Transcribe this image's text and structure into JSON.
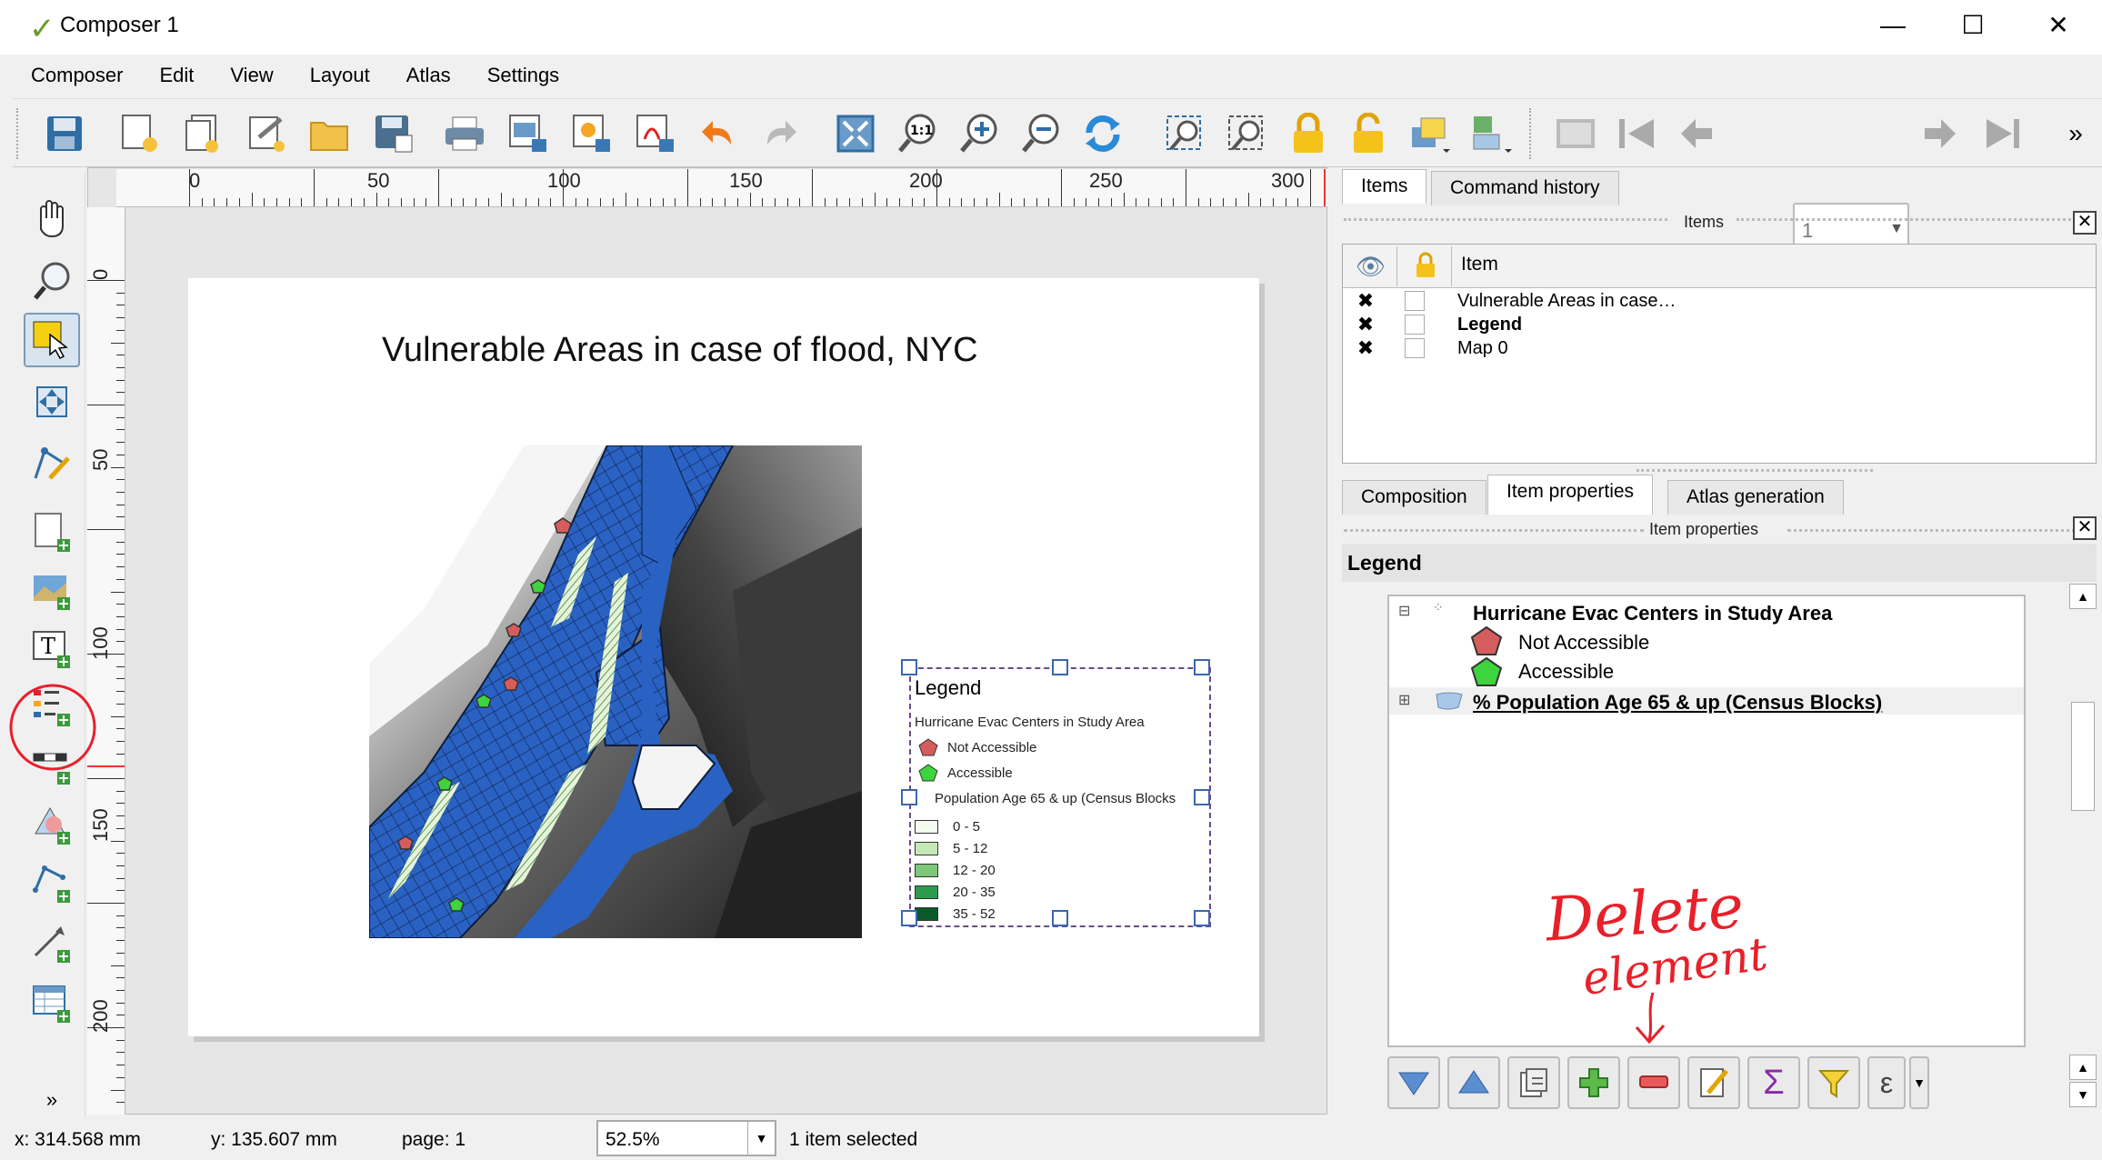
{
  "window": {
    "title": "Composer 1",
    "minimize": "—",
    "maximize": "☐",
    "close": "✕"
  },
  "menu": [
    "Composer",
    "Edit",
    "View",
    "Layout",
    "Atlas",
    "Settings"
  ],
  "toolbar": {
    "icons": [
      "save-icon",
      "new-composer-icon",
      "duplicate-composer-icon",
      "composer-manager-icon",
      "open-template-icon",
      "save-template-icon",
      "print-icon",
      "export-image-icon",
      "export-svg-icon",
      "export-pdf-icon",
      "undo-icon",
      "redo-icon",
      "zoom-full-icon",
      "zoom-actual-icon",
      "zoom-in-icon",
      "zoom-out-icon",
      "refresh-icon",
      "select-all-icon",
      "deselect-icon",
      "lock-icon",
      "unlock-icon",
      "raise-items-icon",
      "align-icon",
      "atlas-preview-icon",
      "first-feature-icon",
      "prev-feature-icon",
      "next-feature-icon",
      "last-feature-icon"
    ],
    "page_number": "1",
    "overflow": "»"
  },
  "ruler": {
    "horizontal_labels": [
      "0",
      "50",
      "100",
      "150",
      "200",
      "250",
      "300"
    ],
    "vertical_labels": [
      "0",
      "50",
      "100",
      "150",
      "200"
    ]
  },
  "composition": {
    "map_title": "Vulnerable Areas in case of flood, NYC",
    "legend": {
      "title": "Legend",
      "group1": "Hurricane Evac Centers in Study Area",
      "not_accessible": "Not Accessible",
      "accessible": "Accessible",
      "group2": "Population Age 65 & up (Census Blocks",
      "classes": [
        "0 - 5",
        "5 - 12",
        "12 - 20",
        "20 - 35",
        "35 - 52"
      ],
      "class_colors": [
        "#f4fbf0",
        "#c5e8b7",
        "#7dc77a",
        "#2d9a4e",
        "#0b5a2a"
      ]
    }
  },
  "right_panel": {
    "top_tabs": [
      "Items",
      "Command history"
    ],
    "items_dock_title": "Items",
    "items_column": "Item",
    "items": [
      {
        "name": "Vulnerable Areas in case…",
        "bold": false
      },
      {
        "name": "Legend",
        "bold": true
      },
      {
        "name": "Map 0",
        "bold": false
      }
    ],
    "bottom_tabs": [
      "Composition",
      "Item properties",
      "Atlas generation"
    ],
    "props_dock_title": "Item properties",
    "legend_header": "Legend",
    "tree": {
      "group1": "Hurricane Evac Centers in Study Area",
      "not_accessible": "Not Accessible",
      "accessible": "Accessible",
      "group2": "% Population Age 65 & up (Census Blocks)"
    },
    "legend_buttons": [
      "move-down-icon",
      "move-up-icon",
      "add-group-icon",
      "add-item-icon",
      "remove-item-icon",
      "edit-item-icon",
      "sum-count-icon",
      "filter-legend-icon",
      "expression-icon"
    ]
  },
  "annotation": {
    "text1": "Delete",
    "text2": "element",
    "color": "#e8202a"
  },
  "status": {
    "x": "x: 314.568 mm",
    "y": "y: 135.607 mm",
    "page": "page: 1",
    "zoom": "52.5%",
    "selection": "1 item selected"
  }
}
